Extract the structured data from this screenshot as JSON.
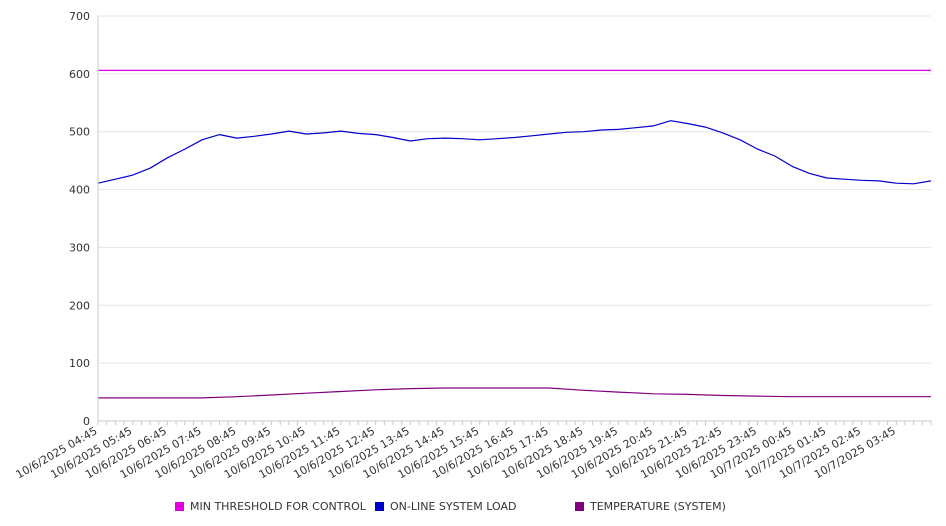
{
  "chart_data": {
    "type": "line",
    "title": "",
    "xlabel": "",
    "ylabel": "",
    "ylim": [
      0,
      700
    ],
    "yticks": [
      0,
      100,
      200,
      300,
      400,
      500,
      600,
      700
    ],
    "grid": "horizontal",
    "legend_position": "bottom",
    "x_tick_labels": [
      "10/6/2025 04:45",
      "10/6/2025 05:45",
      "10/6/2025 06:45",
      "10/6/2025 07:45",
      "10/6/2025 08:45",
      "10/6/2025 09:45",
      "10/6/2025 10:45",
      "10/6/2025 11:45",
      "10/6/2025 12:45",
      "10/6/2025 13:45",
      "10/6/2025 14:45",
      "10/6/2025 15:45",
      "10/6/2025 16:45",
      "10/6/2025 17:45",
      "10/6/2025 18:45",
      "10/6/2025 19:45",
      "10/6/2025 20:45",
      "10/6/2025 21:45",
      "10/6/2025 22:45",
      "10/6/2025 23:45",
      "10/7/2025 00:45",
      "10/7/2025 01:45",
      "10/7/2025 02:45",
      "10/7/2025 03:45"
    ],
    "x_range": [
      "10/6/2025 04:45",
      "10/7/2025 04:45"
    ],
    "series": [
      {
        "name": "MIN THRESHOLD FOR CONTROL",
        "color": "#e000e0",
        "x": [
          "10/6/2025 04:45",
          "10/7/2025 04:45"
        ],
        "values": [
          606,
          606
        ]
      },
      {
        "name": "ON-LINE SYSTEM LOAD",
        "color": "#0000cc",
        "x": [
          "10/6/2025 04:45",
          "10/6/2025 05:15",
          "10/6/2025 05:45",
          "10/6/2025 06:15",
          "10/6/2025 06:45",
          "10/6/2025 07:15",
          "10/6/2025 07:45",
          "10/6/2025 08:15",
          "10/6/2025 08:45",
          "10/6/2025 09:15",
          "10/6/2025 09:45",
          "10/6/2025 10:15",
          "10/6/2025 10:45",
          "10/6/2025 11:15",
          "10/6/2025 11:45",
          "10/6/2025 12:15",
          "10/6/2025 12:45",
          "10/6/2025 13:15",
          "10/6/2025 13:45",
          "10/6/2025 14:15",
          "10/6/2025 14:45",
          "10/6/2025 15:15",
          "10/6/2025 15:45",
          "10/6/2025 16:15",
          "10/6/2025 16:45",
          "10/6/2025 17:15",
          "10/6/2025 17:45",
          "10/6/2025 18:15",
          "10/6/2025 18:45",
          "10/6/2025 19:15",
          "10/6/2025 19:45",
          "10/6/2025 20:15",
          "10/6/2025 20:45",
          "10/6/2025 21:15",
          "10/6/2025 21:45",
          "10/6/2025 22:15",
          "10/6/2025 22:45",
          "10/6/2025 23:15",
          "10/6/2025 23:45",
          "10/7/2025 00:15",
          "10/7/2025 00:45",
          "10/7/2025 01:15",
          "10/7/2025 01:45",
          "10/7/2025 02:15",
          "10/7/2025 02:45",
          "10/7/2025 03:15",
          "10/7/2025 03:45",
          "10/7/2025 04:15",
          "10/7/2025 04:45"
        ],
        "values": [
          411,
          418,
          425,
          437,
          455,
          470,
          486,
          495,
          489,
          492,
          496,
          501,
          496,
          498,
          501,
          497,
          495,
          490,
          484,
          488,
          489,
          488,
          486,
          488,
          490,
          493,
          496,
          499,
          500,
          503,
          504,
          507,
          510,
          519,
          514,
          508,
          498,
          486,
          470,
          458,
          440,
          428,
          420,
          418,
          416,
          415,
          411,
          410,
          415
        ]
      },
      {
        "name": "TEMPERATURE (SYSTEM)",
        "color": "#800080",
        "x": [
          "10/6/2025 04:45",
          "10/6/2025 07:45",
          "10/6/2025 08:45",
          "10/6/2025 09:45",
          "10/6/2025 10:45",
          "10/6/2025 11:45",
          "10/6/2025 12:45",
          "10/6/2025 13:45",
          "10/6/2025 14:45",
          "10/6/2025 15:45",
          "10/6/2025 16:45",
          "10/6/2025 17:45",
          "10/6/2025 18:45",
          "10/6/2025 19:45",
          "10/6/2025 20:45",
          "10/6/2025 21:45",
          "10/6/2025 22:45",
          "10/6/2025 23:45",
          "10/7/2025 00:45",
          "10/7/2025 01:45",
          "10/7/2025 02:45",
          "10/7/2025 03:45",
          "10/7/2025 04:45"
        ],
        "values": [
          40,
          40,
          42,
          45,
          48,
          51,
          54,
          56,
          57,
          57,
          57,
          57,
          53,
          50,
          47,
          46,
          44,
          43,
          42,
          42,
          42,
          42,
          42
        ]
      }
    ]
  }
}
